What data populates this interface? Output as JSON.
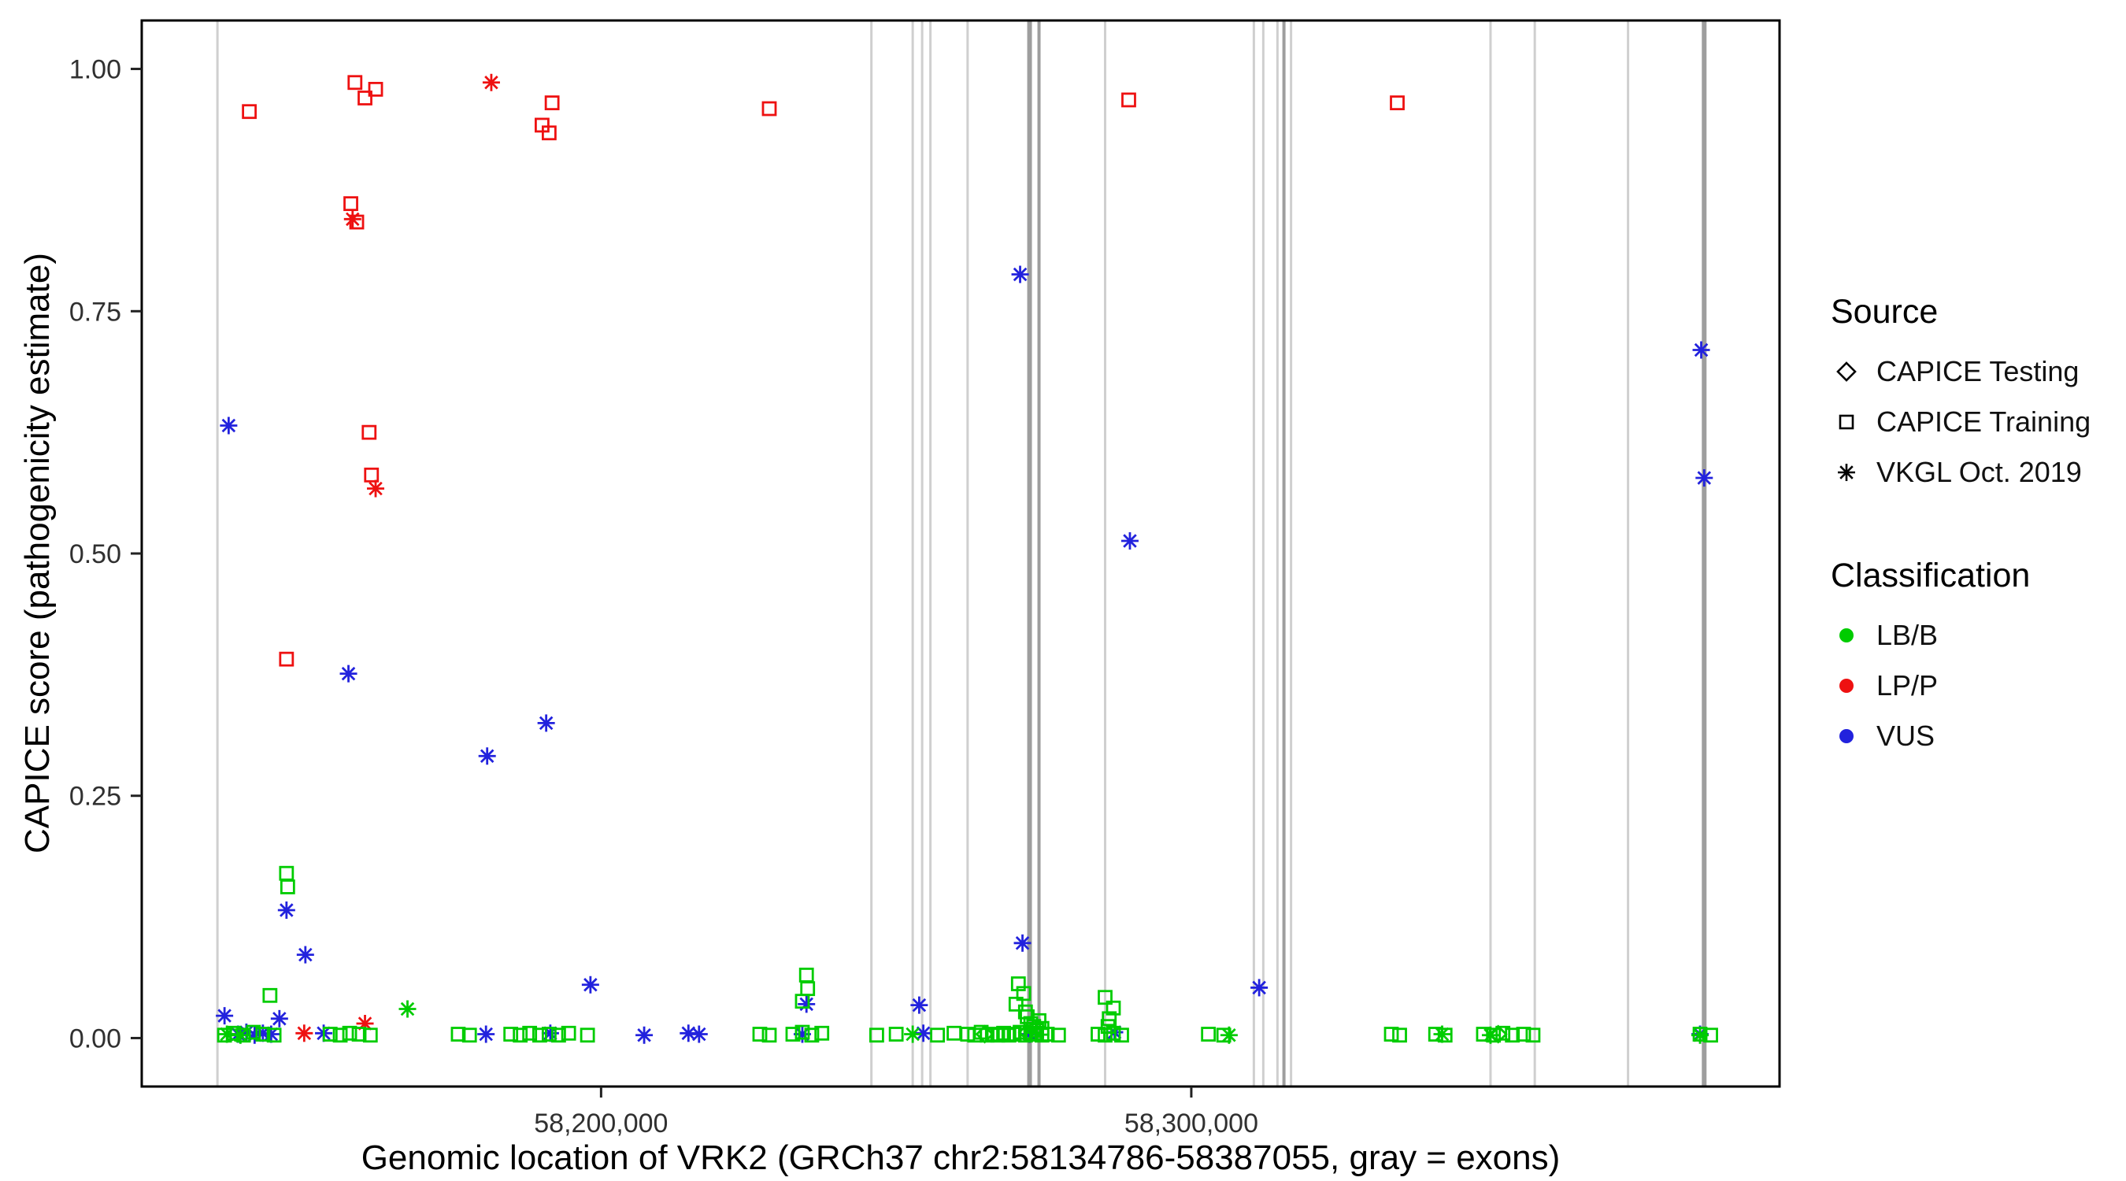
{
  "chart_data": {
    "type": "scatter",
    "title": "",
    "xlabel": "Genomic location of VRK2 (GRCh37 chr2:58134786-58387055, gray = exons)",
    "ylabel": "CAPICE score (pathogenicity estimate)",
    "x_domain": [
      58122173,
      58399668
    ],
    "y_domain": [
      -0.05,
      1.05
    ],
    "x_ticks": [
      {
        "value": 58200000,
        "label": "58,200,000"
      },
      {
        "value": 58300000,
        "label": "58,300,000"
      }
    ],
    "y_ticks": [
      {
        "value": 0.0,
        "label": "0.00"
      },
      {
        "value": 0.25,
        "label": "0.25"
      },
      {
        "value": 0.5,
        "label": "0.50"
      },
      {
        "value": 0.75,
        "label": "0.75"
      },
      {
        "value": 1.0,
        "label": "1.00"
      }
    ],
    "grid": false,
    "exon_color_light": "#CFCFCF",
    "exon_color_dark": "#9E9E9E",
    "colors": {
      "LBB": "#00CC00",
      "LPP": "#EE1111",
      "VUS": "#2222DD"
    },
    "exons": [
      [
        58135000,
        3,
        "light"
      ],
      [
        58245800,
        3,
        "light"
      ],
      [
        58252800,
        3,
        "light"
      ],
      [
        58254400,
        3,
        "light"
      ],
      [
        58255800,
        3,
        "light"
      ],
      [
        58262100,
        3,
        "light"
      ],
      [
        58272600,
        6,
        "dark"
      ],
      [
        58274200,
        4,
        "dark"
      ],
      [
        58285400,
        3,
        "light"
      ],
      [
        58310600,
        3,
        "light"
      ],
      [
        58312200,
        3,
        "light"
      ],
      [
        58314600,
        3,
        "light"
      ],
      [
        58315700,
        4,
        "dark"
      ],
      [
        58316900,
        3,
        "light"
      ],
      [
        58350700,
        3,
        "light"
      ],
      [
        58358200,
        3,
        "light"
      ],
      [
        58374000,
        3,
        "light"
      ],
      [
        58386900,
        6,
        "dark"
      ]
    ],
    "series": [
      {
        "source": "CAPICE Training",
        "classification": "LP/P",
        "marker": "square",
        "color_key": "LPP",
        "points": [
          [
            58140400,
            0.956
          ],
          [
            58158300,
            0.986
          ],
          [
            58160000,
            0.97
          ],
          [
            58161800,
            0.979
          ],
          [
            58157600,
            0.861
          ],
          [
            58158600,
            0.842
          ],
          [
            58160700,
            0.625
          ],
          [
            58161100,
            0.581
          ],
          [
            58146700,
            0.391
          ],
          [
            58191700,
            0.965
          ],
          [
            58190000,
            0.942
          ],
          [
            58191200,
            0.934
          ],
          [
            58228500,
            0.959
          ],
          [
            58289400,
            0.968
          ],
          [
            58334900,
            0.965
          ]
        ]
      },
      {
        "source": "VKGL Oct. 2019",
        "classification": "LP/P",
        "marker": "asterisk",
        "color_key": "LPP",
        "points": [
          [
            58181400,
            0.986
          ],
          [
            58157900,
            0.845
          ],
          [
            58161800,
            0.567
          ],
          [
            58149700,
            0.005
          ],
          [
            58160000,
            0.015
          ]
        ]
      },
      {
        "source": "VKGL Oct. 2019",
        "classification": "VUS",
        "marker": "asterisk",
        "color_key": "VUS",
        "points": [
          [
            58136900,
            0.632
          ],
          [
            58271000,
            0.788
          ],
          [
            58386400,
            0.71
          ],
          [
            58386900,
            0.578
          ],
          [
            58289600,
            0.513
          ],
          [
            58157200,
            0.376
          ],
          [
            58190700,
            0.325
          ],
          [
            58180700,
            0.291
          ],
          [
            58146700,
            0.132
          ],
          [
            58149900,
            0.086
          ],
          [
            58271400,
            0.098
          ],
          [
            58198200,
            0.055
          ],
          [
            58311500,
            0.052
          ],
          [
            58136200,
            0.023
          ],
          [
            58145500,
            0.02
          ],
          [
            58234800,
            0.035
          ],
          [
            58253900,
            0.034
          ],
          [
            58138500,
            0.004
          ],
          [
            58139900,
            0.006
          ],
          [
            58141300,
            0.003
          ],
          [
            58142700,
            0.005
          ],
          [
            58144100,
            0.004
          ],
          [
            58153000,
            0.005
          ],
          [
            58180500,
            0.004
          ],
          [
            58191400,
            0.005
          ],
          [
            58207300,
            0.003
          ],
          [
            58214800,
            0.005
          ],
          [
            58216600,
            0.004
          ],
          [
            58234100,
            0.004
          ],
          [
            58254600,
            0.005
          ],
          [
            58272600,
            0.004
          ],
          [
            58287000,
            0.006
          ],
          [
            58386200,
            0.004
          ]
        ]
      },
      {
        "source": "CAPICE Training",
        "classification": "LB/B",
        "marker": "square",
        "color_key": "LBB",
        "points": [
          [
            58146700,
            0.17
          ],
          [
            58146900,
            0.156
          ],
          [
            58143900,
            0.044
          ],
          [
            58234800,
            0.065
          ],
          [
            58235000,
            0.051
          ],
          [
            58234100,
            0.038
          ],
          [
            58270700,
            0.056
          ],
          [
            58271600,
            0.046
          ],
          [
            58270300,
            0.035
          ],
          [
            58271900,
            0.027
          ],
          [
            58272200,
            0.022
          ],
          [
            58272800,
            0.015
          ],
          [
            58273300,
            0.012
          ],
          [
            58273800,
            0.008
          ],
          [
            58274200,
            0.018
          ],
          [
            58274700,
            0.01
          ],
          [
            58285400,
            0.042
          ],
          [
            58286800,
            0.031
          ],
          [
            58286100,
            0.02
          ],
          [
            58285900,
            0.012
          ],
          [
            58136200,
            0.003
          ],
          [
            58137800,
            0.005
          ],
          [
            58139400,
            0.003
          ],
          [
            58141100,
            0.006
          ],
          [
            58142700,
            0.004
          ],
          [
            58144600,
            0.003
          ],
          [
            58154100,
            0.004
          ],
          [
            58155800,
            0.003
          ],
          [
            58157400,
            0.005
          ],
          [
            58159000,
            0.004
          ],
          [
            58160900,
            0.003
          ],
          [
            58175800,
            0.004
          ],
          [
            58177700,
            0.003
          ],
          [
            58184700,
            0.004
          ],
          [
            58186300,
            0.003
          ],
          [
            58187900,
            0.005
          ],
          [
            58189600,
            0.003
          ],
          [
            58191200,
            0.004
          ],
          [
            58192800,
            0.003
          ],
          [
            58194500,
            0.005
          ],
          [
            58197700,
            0.003
          ],
          [
            58226900,
            0.004
          ],
          [
            58228500,
            0.003
          ],
          [
            58232500,
            0.004
          ],
          [
            58234100,
            0.006
          ],
          [
            58235700,
            0.003
          ],
          [
            58237400,
            0.005
          ],
          [
            58246700,
            0.003
          ],
          [
            58250000,
            0.004
          ],
          [
            58257000,
            0.003
          ],
          [
            58259800,
            0.005
          ],
          [
            58262100,
            0.004
          ],
          [
            58263300,
            0.003
          ],
          [
            58264400,
            0.006
          ],
          [
            58265400,
            0.003
          ],
          [
            58266300,
            0.004
          ],
          [
            58267200,
            0.003
          ],
          [
            58268200,
            0.005
          ],
          [
            58269100,
            0.003
          ],
          [
            58270000,
            0.004
          ],
          [
            58271000,
            0.006
          ],
          [
            58271900,
            0.003
          ],
          [
            58272800,
            0.004
          ],
          [
            58273800,
            0.005
          ],
          [
            58274700,
            0.003
          ],
          [
            58275600,
            0.004
          ],
          [
            58277500,
            0.003
          ],
          [
            58284200,
            0.004
          ],
          [
            58285400,
            0.003
          ],
          [
            58286800,
            0.005
          ],
          [
            58288200,
            0.003
          ],
          [
            58302900,
            0.004
          ],
          [
            58305500,
            0.003
          ],
          [
            58333900,
            0.004
          ],
          [
            58335300,
            0.003
          ],
          [
            58341400,
            0.004
          ],
          [
            58343000,
            0.003
          ],
          [
            58349500,
            0.004
          ],
          [
            58351200,
            0.003
          ],
          [
            58352800,
            0.005
          ],
          [
            58354400,
            0.003
          ],
          [
            58356300,
            0.004
          ],
          [
            58357900,
            0.003
          ],
          [
            58386200,
            0.004
          ],
          [
            58388000,
            0.003
          ]
        ]
      },
      {
        "source": "VKGL Oct. 2019",
        "classification": "LB/B",
        "marker": "asterisk",
        "color_key": "LBB",
        "points": [
          [
            58167200,
            0.03
          ],
          [
            58136600,
            0.004
          ],
          [
            58138900,
            0.003
          ],
          [
            58252800,
            0.004
          ],
          [
            58306400,
            0.003
          ],
          [
            58342500,
            0.004
          ],
          [
            58350700,
            0.003
          ],
          [
            58386200,
            0.003
          ]
        ]
      },
      {
        "source": "CAPICE Testing",
        "classification": "LB/B",
        "marker": "diamond",
        "color_key": "LBB",
        "points": [
          [
            58265000,
            0.004
          ],
          [
            58272200,
            0.006
          ],
          [
            58352000,
            0.004
          ]
        ]
      }
    ],
    "legend": {
      "source_title": "Source",
      "source_items": [
        {
          "label": "CAPICE Testing",
          "marker": "diamond"
        },
        {
          "label": "CAPICE Training",
          "marker": "square"
        },
        {
          "label": "VKGL Oct. 2019",
          "marker": "asterisk"
        }
      ],
      "classification_title": "Classification",
      "classification_items": [
        {
          "label": "LB/B",
          "color_key": "LBB"
        },
        {
          "label": "LP/P",
          "color_key": "LPP"
        },
        {
          "label": "VUS",
          "color_key": "VUS"
        }
      ]
    }
  }
}
